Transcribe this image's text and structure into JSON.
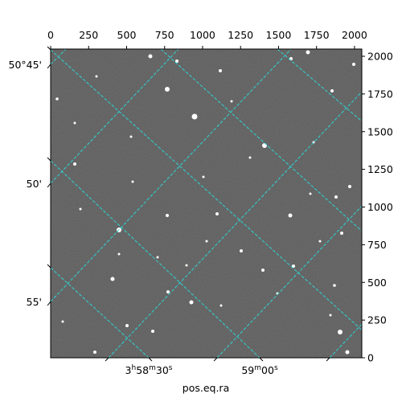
{
  "chart_data": {
    "type": "image",
    "xlabel": "pos.eq.ra",
    "xlim": [
      0,
      2048
    ],
    "xticks": [
      0,
      250,
      500,
      750,
      1000,
      1250,
      1500,
      1750,
      2000
    ],
    "ylim": [
      0,
      2048
    ],
    "yticks": [
      0,
      250,
      500,
      750,
      1000,
      1250,
      1500,
      1750,
      2000
    ],
    "dec_labels": [
      "50°45'",
      "50'",
      "55'"
    ],
    "ra_labels": [
      [
        {
          "text": "3"
        },
        {
          "text": "h",
          "sup": true
        },
        {
          "text": "58"
        },
        {
          "text": "m",
          "sup": true
        },
        {
          "text": "30"
        },
        {
          "text": "s",
          "sup": true
        }
      ],
      [
        {
          "text": "59"
        },
        {
          "text": "m",
          "sup": true
        },
        {
          "text": "00"
        },
        {
          "text": "s",
          "sup": true
        }
      ]
    ]
  }
}
